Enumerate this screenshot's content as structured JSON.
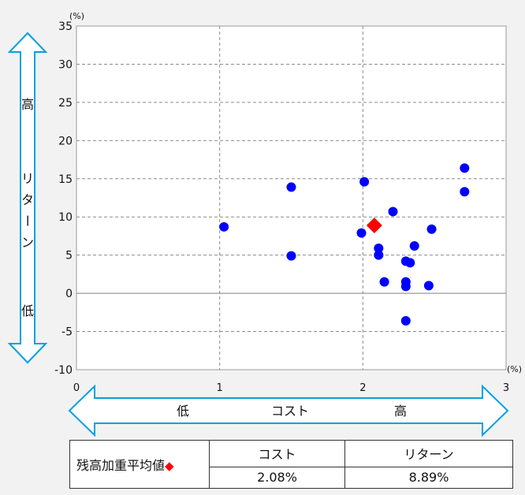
{
  "chart_data": {
    "type": "scatter",
    "x_unit": "(%)",
    "y_unit": "(%)",
    "xlim": [
      0,
      3
    ],
    "ylim": [
      -10,
      35
    ],
    "x_ticks": [
      "0",
      "1",
      "2",
      "3"
    ],
    "y_ticks": [
      "35",
      "30",
      "25",
      "20",
      "15",
      "10",
      "5",
      "0",
      "-5",
      "-10"
    ],
    "grid": true,
    "series": [
      {
        "marker": "circle",
        "color": "#0000ff",
        "points": [
          {
            "x": 1.03,
            "y": 8.7
          },
          {
            "x": 1.5,
            "y": 13.9
          },
          {
            "x": 1.5,
            "y": 4.9
          },
          {
            "x": 2.01,
            "y": 14.6
          },
          {
            "x": 1.99,
            "y": 7.9
          },
          {
            "x": 2.21,
            "y": 10.7
          },
          {
            "x": 2.11,
            "y": 5.9
          },
          {
            "x": 2.11,
            "y": 5.0
          },
          {
            "x": 2.15,
            "y": 1.5
          },
          {
            "x": 2.3,
            "y": 4.2
          },
          {
            "x": 2.33,
            "y": 4.0
          },
          {
            "x": 2.36,
            "y": 6.2
          },
          {
            "x": 2.3,
            "y": 1.5
          },
          {
            "x": 2.3,
            "y": 0.9
          },
          {
            "x": 2.46,
            "y": 1.0
          },
          {
            "x": 2.48,
            "y": 8.4
          },
          {
            "x": 2.3,
            "y": -3.6
          },
          {
            "x": 2.71,
            "y": 16.4
          },
          {
            "x": 2.71,
            "y": 13.3
          }
        ]
      },
      {
        "marker": "diamond",
        "color": "#ff0000",
        "points": [
          {
            "x": 2.08,
            "y": 8.89
          }
        ]
      }
    ]
  },
  "y_axis_arrow": {
    "high": "高",
    "label": "リターン",
    "low": "低"
  },
  "x_axis_arrow": {
    "low": "低",
    "label": "コスト",
    "high": "高"
  },
  "summary_table": {
    "row_label": "残高加重平均値",
    "marker_glyph": "◆",
    "headers": [
      "コスト",
      "リターン"
    ],
    "values": [
      "2.08%",
      "8.89%"
    ]
  }
}
